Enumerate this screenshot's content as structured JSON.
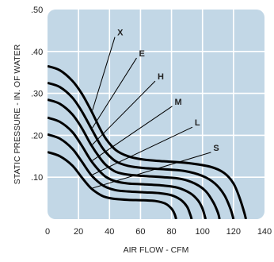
{
  "chart_data": {
    "type": "line",
    "title": "",
    "xlabel": "AIR FLOW - CFM",
    "ylabel": "STATIC PRESSURE - IN. OF WATER",
    "xlim": [
      0,
      140
    ],
    "ylim": [
      0,
      0.5
    ],
    "x_ticks": [
      "0",
      "20",
      "40",
      "60",
      "80",
      "100",
      "120",
      "140"
    ],
    "y_ticks": [
      ".10",
      ".20",
      ".30",
      ".40",
      ".50"
    ],
    "grid": true,
    "plot_background": "#c2d7e6",
    "grid_color": "#ffffff",
    "line_color": "#000000",
    "series": [
      {
        "name": "X",
        "label_point": [
          45,
          0.44
        ],
        "points": [
          [
            0,
            0.365
          ],
          [
            8,
            0.355
          ],
          [
            16,
            0.33
          ],
          [
            22,
            0.3
          ],
          [
            28,
            0.26
          ],
          [
            34,
            0.215
          ],
          [
            38,
            0.19
          ],
          [
            44,
            0.165
          ],
          [
            52,
            0.15
          ],
          [
            62,
            0.142
          ],
          [
            75,
            0.138
          ],
          [
            90,
            0.134
          ],
          [
            105,
            0.125
          ],
          [
            114,
            0.11
          ],
          [
            120,
            0.085
          ],
          [
            124,
            0.05
          ],
          [
            127,
            0.015
          ],
          [
            128,
            0
          ]
        ]
      },
      {
        "name": "E",
        "label_point": [
          59,
          0.39
        ],
        "points": [
          [
            0,
            0.325
          ],
          [
            8,
            0.315
          ],
          [
            16,
            0.29
          ],
          [
            22,
            0.258
          ],
          [
            28,
            0.218
          ],
          [
            34,
            0.178
          ],
          [
            38,
            0.158
          ],
          [
            44,
            0.138
          ],
          [
            52,
            0.127
          ],
          [
            62,
            0.122
          ],
          [
            75,
            0.119
          ],
          [
            88,
            0.115
          ],
          [
            100,
            0.103
          ],
          [
            108,
            0.085
          ],
          [
            114,
            0.058
          ],
          [
            118,
            0.025
          ],
          [
            120,
            0
          ]
        ]
      },
      {
        "name": "H",
        "label_point": [
          71,
          0.335
        ],
        "points": [
          [
            0,
            0.285
          ],
          [
            8,
            0.275
          ],
          [
            16,
            0.25
          ],
          [
            22,
            0.218
          ],
          [
            28,
            0.178
          ],
          [
            34,
            0.145
          ],
          [
            38,
            0.128
          ],
          [
            44,
            0.113
          ],
          [
            52,
            0.106
          ],
          [
            62,
            0.103
          ],
          [
            75,
            0.1
          ],
          [
            86,
            0.096
          ],
          [
            95,
            0.085
          ],
          [
            102,
            0.067
          ],
          [
            107,
            0.04
          ],
          [
            110,
            0.015
          ],
          [
            111,
            0
          ]
        ]
      },
      {
        "name": "M",
        "label_point": [
          82,
          0.275
        ],
        "points": [
          [
            0,
            0.242
          ],
          [
            8,
            0.232
          ],
          [
            16,
            0.208
          ],
          [
            22,
            0.176
          ],
          [
            28,
            0.14
          ],
          [
            34,
            0.113
          ],
          [
            38,
            0.1
          ],
          [
            44,
            0.09
          ],
          [
            52,
            0.085
          ],
          [
            62,
            0.083
          ],
          [
            75,
            0.08
          ],
          [
            84,
            0.075
          ],
          [
            92,
            0.062
          ],
          [
            97,
            0.045
          ],
          [
            100,
            0.025
          ],
          [
            102,
            0
          ]
        ]
      },
      {
        "name": "L",
        "label_point": [
          95,
          0.225
        ],
        "points": [
          [
            0,
            0.202
          ],
          [
            8,
            0.192
          ],
          [
            16,
            0.168
          ],
          [
            22,
            0.138
          ],
          [
            28,
            0.106
          ],
          [
            34,
            0.085
          ],
          [
            38,
            0.076
          ],
          [
            44,
            0.069
          ],
          [
            52,
            0.066
          ],
          [
            62,
            0.064
          ],
          [
            72,
            0.062
          ],
          [
            80,
            0.057
          ],
          [
            86,
            0.046
          ],
          [
            90,
            0.03
          ],
          [
            92,
            0.012
          ],
          [
            93,
            0
          ]
        ]
      },
      {
        "name": "S",
        "label_point": [
          107,
          0.165
        ],
        "points": [
          [
            0,
            0.16
          ],
          [
            8,
            0.15
          ],
          [
            16,
            0.128
          ],
          [
            22,
            0.1
          ],
          [
            28,
            0.074
          ],
          [
            34,
            0.058
          ],
          [
            38,
            0.052
          ],
          [
            44,
            0.048
          ],
          [
            52,
            0.046
          ],
          [
            62,
            0.045
          ],
          [
            70,
            0.043
          ],
          [
            76,
            0.037
          ],
          [
            80,
            0.025
          ],
          [
            82,
            0.012
          ],
          [
            83,
            0
          ]
        ]
      }
    ]
  }
}
